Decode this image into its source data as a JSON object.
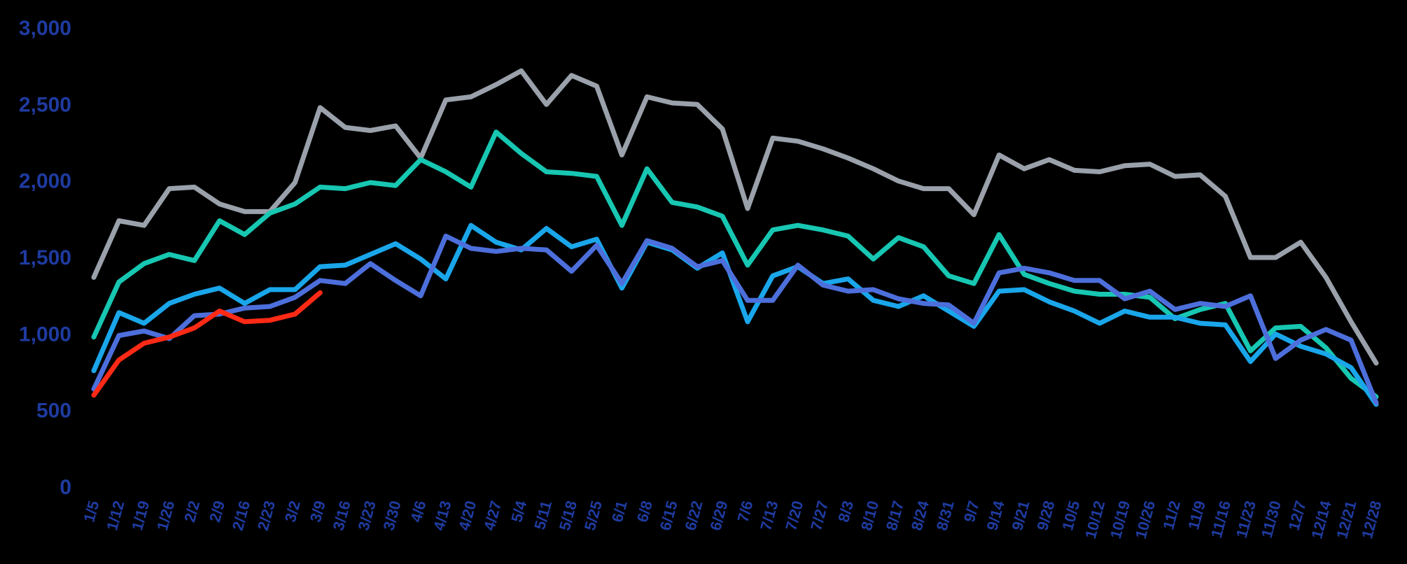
{
  "chart_data": {
    "type": "line",
    "title": "",
    "xlabel": "",
    "ylabel": "",
    "ylim": [
      0,
      3000
    ],
    "y_ticks": [
      "0",
      "500",
      "1,000",
      "1,500",
      "2,000",
      "2,500",
      "3,000"
    ],
    "y_tick_values": [
      0,
      500,
      1000,
      1500,
      2000,
      2500,
      3000
    ],
    "grid": false,
    "legend": "none",
    "x": [
      "1/5",
      "1/12",
      "1/19",
      "1/26",
      "2/2",
      "2/9",
      "2/16",
      "2/23",
      "3/2",
      "3/9",
      "3/16",
      "3/23",
      "3/30",
      "4/6",
      "4/13",
      "4/20",
      "4/27",
      "5/4",
      "5/11",
      "5/18",
      "5/25",
      "6/1",
      "6/8",
      "6/15",
      "6/22",
      "6/29",
      "7/6",
      "7/13",
      "7/20",
      "7/27",
      "8/3",
      "8/10",
      "8/17",
      "8/24",
      "8/31",
      "9/7",
      "9/14",
      "9/21",
      "9/28",
      "10/5",
      "10/12",
      "10/19",
      "10/26",
      "11/2",
      "11/9",
      "11/16",
      "11/23",
      "11/30",
      "12/7",
      "12/14",
      "12/21",
      "12/28"
    ],
    "series": [
      {
        "color": "#9aa1aa",
        "values": [
          1370,
          1740,
          1710,
          1950,
          1960,
          1850,
          1800,
          1800,
          1990,
          2480,
          2350,
          2330,
          2360,
          2150,
          2530,
          2550,
          2630,
          2720,
          2500,
          2690,
          2620,
          2170,
          2550,
          2510,
          2500,
          2340,
          1820,
          2280,
          2260,
          2210,
          2150,
          2080,
          2000,
          1950,
          1950,
          1780,
          2170,
          2080,
          2140,
          2070,
          2060,
          2100,
          2110,
          2030,
          2040,
          1900,
          1500,
          1500,
          1600,
          1370,
          1080,
          810
        ]
      },
      {
        "color": "#17c7b2",
        "values": [
          980,
          1340,
          1460,
          1520,
          1480,
          1740,
          1650,
          1790,
          1850,
          1960,
          1950,
          1990,
          1970,
          2140,
          2060,
          1960,
          2320,
          2180,
          2060,
          2050,
          2030,
          1710,
          2080,
          1860,
          1830,
          1770,
          1450,
          1680,
          1710,
          1680,
          1640,
          1490,
          1630,
          1570,
          1380,
          1330,
          1650,
          1390,
          1330,
          1280,
          1260,
          1260,
          1240,
          1100,
          1160,
          1200,
          890,
          1040,
          1050,
          910,
          710,
          590
        ]
      },
      {
        "color": "#1aa6ea",
        "values": [
          760,
          1140,
          1070,
          1200,
          1260,
          1300,
          1200,
          1290,
          1290,
          1440,
          1450,
          1520,
          1590,
          1490,
          1360,
          1710,
          1600,
          1550,
          1690,
          1570,
          1620,
          1300,
          1600,
          1550,
          1430,
          1530,
          1080,
          1380,
          1440,
          1330,
          1360,
          1220,
          1180,
          1250,
          1150,
          1050,
          1280,
          1290,
          1210,
          1150,
          1070,
          1150,
          1110,
          1110,
          1070,
          1060,
          820,
          1000,
          920,
          870,
          780,
          540
        ]
      },
      {
        "color": "#4d6fdc",
        "values": [
          640,
          990,
          1020,
          970,
          1120,
          1130,
          1170,
          1180,
          1240,
          1350,
          1330,
          1460,
          1350,
          1250,
          1640,
          1560,
          1540,
          1560,
          1550,
          1410,
          1580,
          1330,
          1610,
          1560,
          1440,
          1480,
          1220,
          1220,
          1450,
          1320,
          1280,
          1290,
          1230,
          1200,
          1190,
          1070,
          1400,
          1430,
          1400,
          1350,
          1350,
          1230,
          1280,
          1160,
          1200,
          1180,
          1250,
          840,
          960,
          1030,
          960,
          550
        ]
      },
      {
        "color": "#ff2a16",
        "values": [
          600,
          830,
          940,
          980,
          1040,
          1150,
          1080,
          1090,
          1130,
          1270,
          null,
          null,
          null,
          null,
          null,
          null,
          null,
          null,
          null,
          null,
          null,
          null,
          null,
          null,
          null,
          null,
          null,
          null,
          null,
          null,
          null,
          null,
          null,
          null,
          null,
          null,
          null,
          null,
          null,
          null,
          null,
          null,
          null,
          null,
          null,
          null,
          null,
          null,
          null,
          null,
          null,
          null
        ]
      }
    ]
  }
}
